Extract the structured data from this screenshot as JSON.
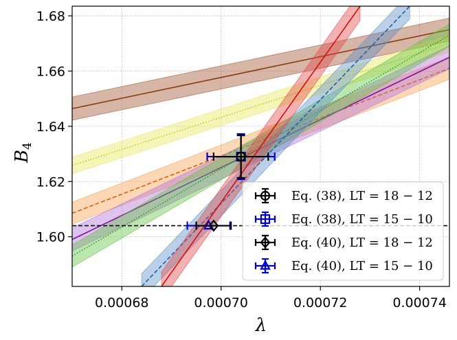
{
  "chart_data": {
    "type": "line",
    "title": "",
    "xlabel": "λ",
    "ylabel": "B",
    "ylabel_subscript": "4",
    "xlim": [
      0.00067,
      0.000746
    ],
    "ylim": [
      1.582,
      1.6835
    ],
    "xticks": [
      {
        "value": 0.00068,
        "label": "0.00068"
      },
      {
        "value": 0.0007,
        "label": "0.00070"
      },
      {
        "value": 0.00072,
        "label": "0.00072"
      },
      {
        "value": 0.00074,
        "label": "0.00074"
      }
    ],
    "yticks": [
      {
        "value": 1.6,
        "label": "1.60"
      },
      {
        "value": 1.62,
        "label": "1.62"
      },
      {
        "value": 1.64,
        "label": "1.64"
      },
      {
        "value": 1.66,
        "label": "1.66"
      },
      {
        "value": 1.68,
        "label": "1.68"
      }
    ],
    "grid": true,
    "horizontal_reference": {
      "y": 1.604,
      "style": "dashed",
      "color": "#000000"
    },
    "bands": [
      {
        "name": "band-brown",
        "color": "#8B3A0E",
        "fill": "#A0522D",
        "style": "solid",
        "x": [
          0.00067,
          0.000746
        ],
        "y": [
          1.6464,
          1.675
        ],
        "halfwidth": 0.0042
      },
      {
        "name": "band-yellow",
        "color": "#C8C800",
        "fill": "#E6E65A",
        "style": "dotted",
        "x": [
          0.00067,
          0.000746
        ],
        "y": [
          1.6258,
          1.67
        ],
        "halfwidth": 0.003
      },
      {
        "name": "band-orange",
        "color": "#E06000",
        "fill": "#F5A050",
        "style": "dashed",
        "x": [
          0.00067,
          0.000746
        ],
        "y": [
          1.6085,
          1.661
        ],
        "halfwidth": 0.004
      },
      {
        "name": "band-purple",
        "color": "#8010A0",
        "fill": "#B070D8",
        "style": "solid",
        "x": [
          0.00067,
          0.000746
        ],
        "y": [
          1.599,
          1.665
        ],
        "halfwidth": 0.0042
      },
      {
        "name": "band-green",
        "color": "#20A020",
        "fill": "#60C040",
        "style": "dotted",
        "x": [
          0.00067,
          0.000746
        ],
        "y": [
          1.593,
          1.673
        ],
        "halfwidth": 0.004
      },
      {
        "name": "band-blue",
        "color": "#1F5FA0",
        "fill": "#5A8EC8",
        "style": "dashed",
        "x": [
          0.000684,
          0.000738
        ],
        "y": [
          1.582,
          1.6835
        ],
        "halfwidth": 0.0046
      },
      {
        "name": "band-red",
        "color": "#D01010",
        "fill": "#E04848",
        "style": "solid",
        "x": [
          0.000688,
          0.000728
        ],
        "y": [
          1.582,
          1.6835
        ],
        "halfwidth": 0.0052
      }
    ],
    "points": [
      {
        "legend": "Eq. (38), LT = 18 − 12",
        "color": "#000000",
        "marker": "circle",
        "x": 0.000704,
        "y": 1.629,
        "xerr": 5.5e-06,
        "yerr": 0.0077
      },
      {
        "legend": "Eq. (38), LT = 15 − 10",
        "color": "#0000CC",
        "marker": "square",
        "x": 0.000704,
        "y": 1.629,
        "xerr": 6.8e-06,
        "yerr": 0.0082
      },
      {
        "legend": "Eq. (40), LT = 18 − 12",
        "color": "#000000",
        "marker": "diamond",
        "x": 0.0006985,
        "y": 1.604,
        "xerr": 3.5e-06,
        "yerr": 0.0
      },
      {
        "legend": "Eq. (40), LT = 15 − 10",
        "color": "#0000CC",
        "marker": "triangle",
        "x": 0.0006975,
        "y": 1.604,
        "xerr": 4.3e-06,
        "yerr": 0.0
      }
    ],
    "legend_location": "lower-right"
  }
}
